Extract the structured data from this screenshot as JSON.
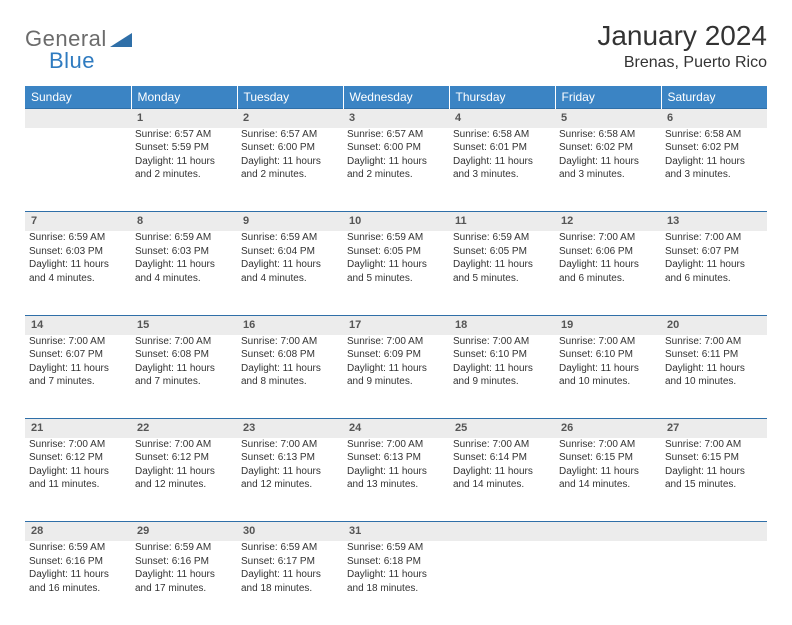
{
  "logo": {
    "general": "General",
    "blue": "Blue"
  },
  "title": "January 2024",
  "location": "Brenas, Puerto Rico",
  "colors": {
    "header_bg": "#3b84c4",
    "header_border": "#2f6fa8",
    "daynum_bg": "#ececec",
    "text": "#333333",
    "logo_gray": "#6b6b6b",
    "logo_blue": "#2f7bc0"
  },
  "weekdays": [
    "Sunday",
    "Monday",
    "Tuesday",
    "Wednesday",
    "Thursday",
    "Friday",
    "Saturday"
  ],
  "weeks": [
    [
      null,
      {
        "n": "1",
        "sunrise": "Sunrise: 6:57 AM",
        "sunset": "Sunset: 5:59 PM",
        "daylight": "Daylight: 11 hours and 2 minutes."
      },
      {
        "n": "2",
        "sunrise": "Sunrise: 6:57 AM",
        "sunset": "Sunset: 6:00 PM",
        "daylight": "Daylight: 11 hours and 2 minutes."
      },
      {
        "n": "3",
        "sunrise": "Sunrise: 6:57 AM",
        "sunset": "Sunset: 6:00 PM",
        "daylight": "Daylight: 11 hours and 2 minutes."
      },
      {
        "n": "4",
        "sunrise": "Sunrise: 6:58 AM",
        "sunset": "Sunset: 6:01 PM",
        "daylight": "Daylight: 11 hours and 3 minutes."
      },
      {
        "n": "5",
        "sunrise": "Sunrise: 6:58 AM",
        "sunset": "Sunset: 6:02 PM",
        "daylight": "Daylight: 11 hours and 3 minutes."
      },
      {
        "n": "6",
        "sunrise": "Sunrise: 6:58 AM",
        "sunset": "Sunset: 6:02 PM",
        "daylight": "Daylight: 11 hours and 3 minutes."
      }
    ],
    [
      {
        "n": "7",
        "sunrise": "Sunrise: 6:59 AM",
        "sunset": "Sunset: 6:03 PM",
        "daylight": "Daylight: 11 hours and 4 minutes."
      },
      {
        "n": "8",
        "sunrise": "Sunrise: 6:59 AM",
        "sunset": "Sunset: 6:03 PM",
        "daylight": "Daylight: 11 hours and 4 minutes."
      },
      {
        "n": "9",
        "sunrise": "Sunrise: 6:59 AM",
        "sunset": "Sunset: 6:04 PM",
        "daylight": "Daylight: 11 hours and 4 minutes."
      },
      {
        "n": "10",
        "sunrise": "Sunrise: 6:59 AM",
        "sunset": "Sunset: 6:05 PM",
        "daylight": "Daylight: 11 hours and 5 minutes."
      },
      {
        "n": "11",
        "sunrise": "Sunrise: 6:59 AM",
        "sunset": "Sunset: 6:05 PM",
        "daylight": "Daylight: 11 hours and 5 minutes."
      },
      {
        "n": "12",
        "sunrise": "Sunrise: 7:00 AM",
        "sunset": "Sunset: 6:06 PM",
        "daylight": "Daylight: 11 hours and 6 minutes."
      },
      {
        "n": "13",
        "sunrise": "Sunrise: 7:00 AM",
        "sunset": "Sunset: 6:07 PM",
        "daylight": "Daylight: 11 hours and 6 minutes."
      }
    ],
    [
      {
        "n": "14",
        "sunrise": "Sunrise: 7:00 AM",
        "sunset": "Sunset: 6:07 PM",
        "daylight": "Daylight: 11 hours and 7 minutes."
      },
      {
        "n": "15",
        "sunrise": "Sunrise: 7:00 AM",
        "sunset": "Sunset: 6:08 PM",
        "daylight": "Daylight: 11 hours and 7 minutes."
      },
      {
        "n": "16",
        "sunrise": "Sunrise: 7:00 AM",
        "sunset": "Sunset: 6:08 PM",
        "daylight": "Daylight: 11 hours and 8 minutes."
      },
      {
        "n": "17",
        "sunrise": "Sunrise: 7:00 AM",
        "sunset": "Sunset: 6:09 PM",
        "daylight": "Daylight: 11 hours and 9 minutes."
      },
      {
        "n": "18",
        "sunrise": "Sunrise: 7:00 AM",
        "sunset": "Sunset: 6:10 PM",
        "daylight": "Daylight: 11 hours and 9 minutes."
      },
      {
        "n": "19",
        "sunrise": "Sunrise: 7:00 AM",
        "sunset": "Sunset: 6:10 PM",
        "daylight": "Daylight: 11 hours and 10 minutes."
      },
      {
        "n": "20",
        "sunrise": "Sunrise: 7:00 AM",
        "sunset": "Sunset: 6:11 PM",
        "daylight": "Daylight: 11 hours and 10 minutes."
      }
    ],
    [
      {
        "n": "21",
        "sunrise": "Sunrise: 7:00 AM",
        "sunset": "Sunset: 6:12 PM",
        "daylight": "Daylight: 11 hours and 11 minutes."
      },
      {
        "n": "22",
        "sunrise": "Sunrise: 7:00 AM",
        "sunset": "Sunset: 6:12 PM",
        "daylight": "Daylight: 11 hours and 12 minutes."
      },
      {
        "n": "23",
        "sunrise": "Sunrise: 7:00 AM",
        "sunset": "Sunset: 6:13 PM",
        "daylight": "Daylight: 11 hours and 12 minutes."
      },
      {
        "n": "24",
        "sunrise": "Sunrise: 7:00 AM",
        "sunset": "Sunset: 6:13 PM",
        "daylight": "Daylight: 11 hours and 13 minutes."
      },
      {
        "n": "25",
        "sunrise": "Sunrise: 7:00 AM",
        "sunset": "Sunset: 6:14 PM",
        "daylight": "Daylight: 11 hours and 14 minutes."
      },
      {
        "n": "26",
        "sunrise": "Sunrise: 7:00 AM",
        "sunset": "Sunset: 6:15 PM",
        "daylight": "Daylight: 11 hours and 14 minutes."
      },
      {
        "n": "27",
        "sunrise": "Sunrise: 7:00 AM",
        "sunset": "Sunset: 6:15 PM",
        "daylight": "Daylight: 11 hours and 15 minutes."
      }
    ],
    [
      {
        "n": "28",
        "sunrise": "Sunrise: 6:59 AM",
        "sunset": "Sunset: 6:16 PM",
        "daylight": "Daylight: 11 hours and 16 minutes."
      },
      {
        "n": "29",
        "sunrise": "Sunrise: 6:59 AM",
        "sunset": "Sunset: 6:16 PM",
        "daylight": "Daylight: 11 hours and 17 minutes."
      },
      {
        "n": "30",
        "sunrise": "Sunrise: 6:59 AM",
        "sunset": "Sunset: 6:17 PM",
        "daylight": "Daylight: 11 hours and 18 minutes."
      },
      {
        "n": "31",
        "sunrise": "Sunrise: 6:59 AM",
        "sunset": "Sunset: 6:18 PM",
        "daylight": "Daylight: 11 hours and 18 minutes."
      },
      null,
      null,
      null
    ]
  ]
}
